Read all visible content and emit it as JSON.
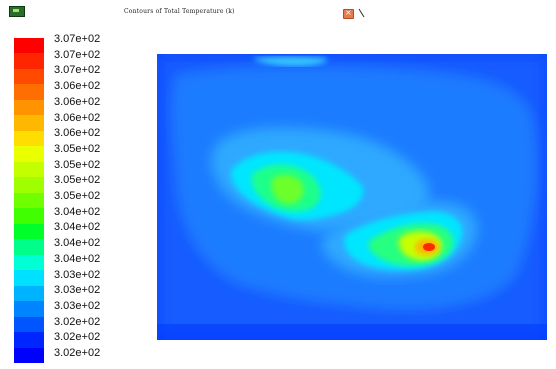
{
  "window": {
    "title": "Contours of Total Temperature (k)"
  },
  "legend": {
    "labels": [
      "3.07e+02",
      "3.07e+02",
      "3.07e+02",
      "3.06e+02",
      "3.06e+02",
      "3.06e+02",
      "3.06e+02",
      "3.05e+02",
      "3.05e+02",
      "3.05e+02",
      "3.05e+02",
      "3.04e+02",
      "3.04e+02",
      "3.04e+02",
      "3.04e+02",
      "3.03e+02",
      "3.03e+02",
      "3.03e+02",
      "3.02e+02",
      "3.02e+02",
      "3.02e+02"
    ],
    "colors": [
      "#ff0000",
      "#ff2500",
      "#ff4a00",
      "#ff6e00",
      "#ff9300",
      "#ffb800",
      "#ffdd00",
      "#eaff00",
      "#c4ff00",
      "#9fff00",
      "#6fff00",
      "#3fff00",
      "#00ff2a",
      "#00ff8a",
      "#00ffd5",
      "#00e0ff",
      "#00b3ff",
      "#0084ff",
      "#0055ff",
      "#0026ff",
      "#0000ff"
    ]
  }
}
